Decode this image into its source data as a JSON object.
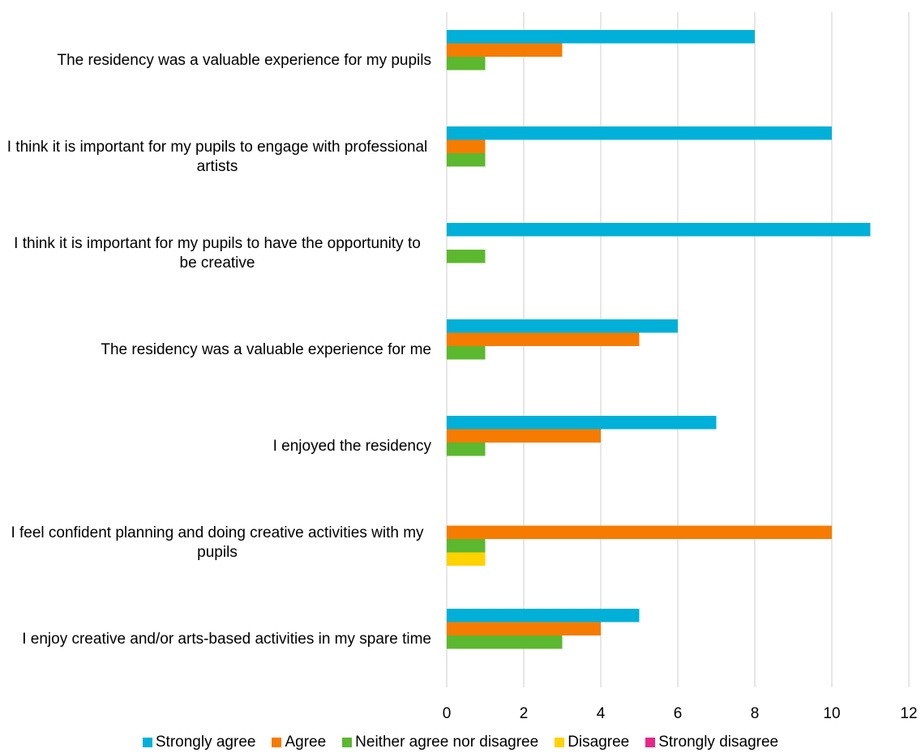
{
  "chart_data": {
    "type": "hbar",
    "categories": [
      "The residency was a valuable experience for my pupils",
      "I think it is important for my pupils to engage with professional artists",
      "I think it is important for my pupils to have the opportunity to be creative",
      "The residency was a valuable experience for me",
      "I enjoyed the residency",
      "I feel confident planning and doing creative activities with my pupils",
      "I enjoy creative and/or arts-based activities in my spare time"
    ],
    "series": [
      {
        "name": "Strongly agree",
        "color": "#00b0d8",
        "values": [
          8,
          10,
          11,
          6,
          7,
          0,
          5
        ]
      },
      {
        "name": "Agree",
        "color": "#f57c00",
        "values": [
          3,
          1,
          0,
          5,
          4,
          10,
          4
        ]
      },
      {
        "name": "Neither agree nor disagree",
        "color": "#5cb82e",
        "values": [
          1,
          1,
          1,
          1,
          1,
          1,
          3
        ]
      },
      {
        "name": "Disagree",
        "color": "#ffd200",
        "values": [
          0,
          0,
          0,
          0,
          0,
          1,
          0
        ]
      },
      {
        "name": "Strongly disagree",
        "color": "#e8268a",
        "values": [
          0,
          0,
          0,
          0,
          0,
          0,
          0
        ]
      }
    ],
    "xlim": [
      0,
      12
    ],
    "xticks": [
      0,
      2,
      4,
      6,
      8,
      10,
      12
    ],
    "grid": true,
    "legend": "bottom"
  }
}
